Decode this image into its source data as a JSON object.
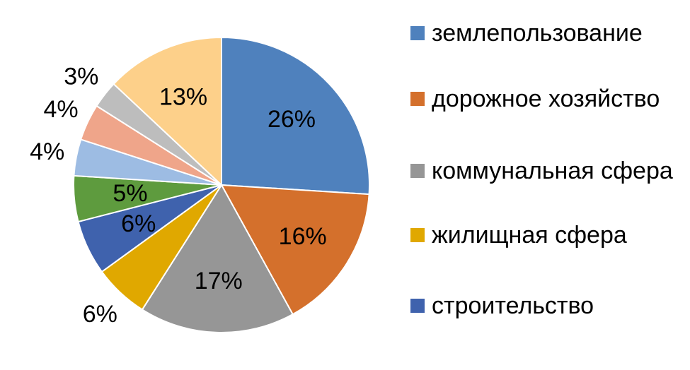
{
  "chart_data": {
    "type": "pie",
    "title": "",
    "categories": [
      "землепользование",
      "дорожное хозяйство",
      "коммунальная сфера",
      "жилищная сфера",
      "строительство",
      "",
      "",
      "",
      "",
      ""
    ],
    "values": [
      26,
      16,
      17,
      6,
      6,
      5,
      4,
      4,
      3,
      13
    ],
    "value_labels": [
      "26%",
      "16%",
      "17%",
      "6%",
      "6%",
      "5%",
      "4%",
      "4%",
      "3%",
      "13%"
    ],
    "colors": [
      "#4F81BD",
      "#D4702C",
      "#969696",
      "#E0A800",
      "#3F62AD",
      "#5E9B3E",
      "#9DBCE3",
      "#EFA58A",
      "#BDBDBD",
      "#FDD08A"
    ],
    "legend_position": "right",
    "legend_entries": [
      {
        "label": "землепользование",
        "color": "#4F81BD"
      },
      {
        "label": "дорожное хозяйство",
        "color": "#D4702C"
      },
      {
        "label": "коммунальная сфера",
        "color": "#969696"
      },
      {
        "label": "жилищная сфера",
        "color": "#E0A800"
      },
      {
        "label": "строительство",
        "color": "#3F62AD"
      }
    ]
  }
}
